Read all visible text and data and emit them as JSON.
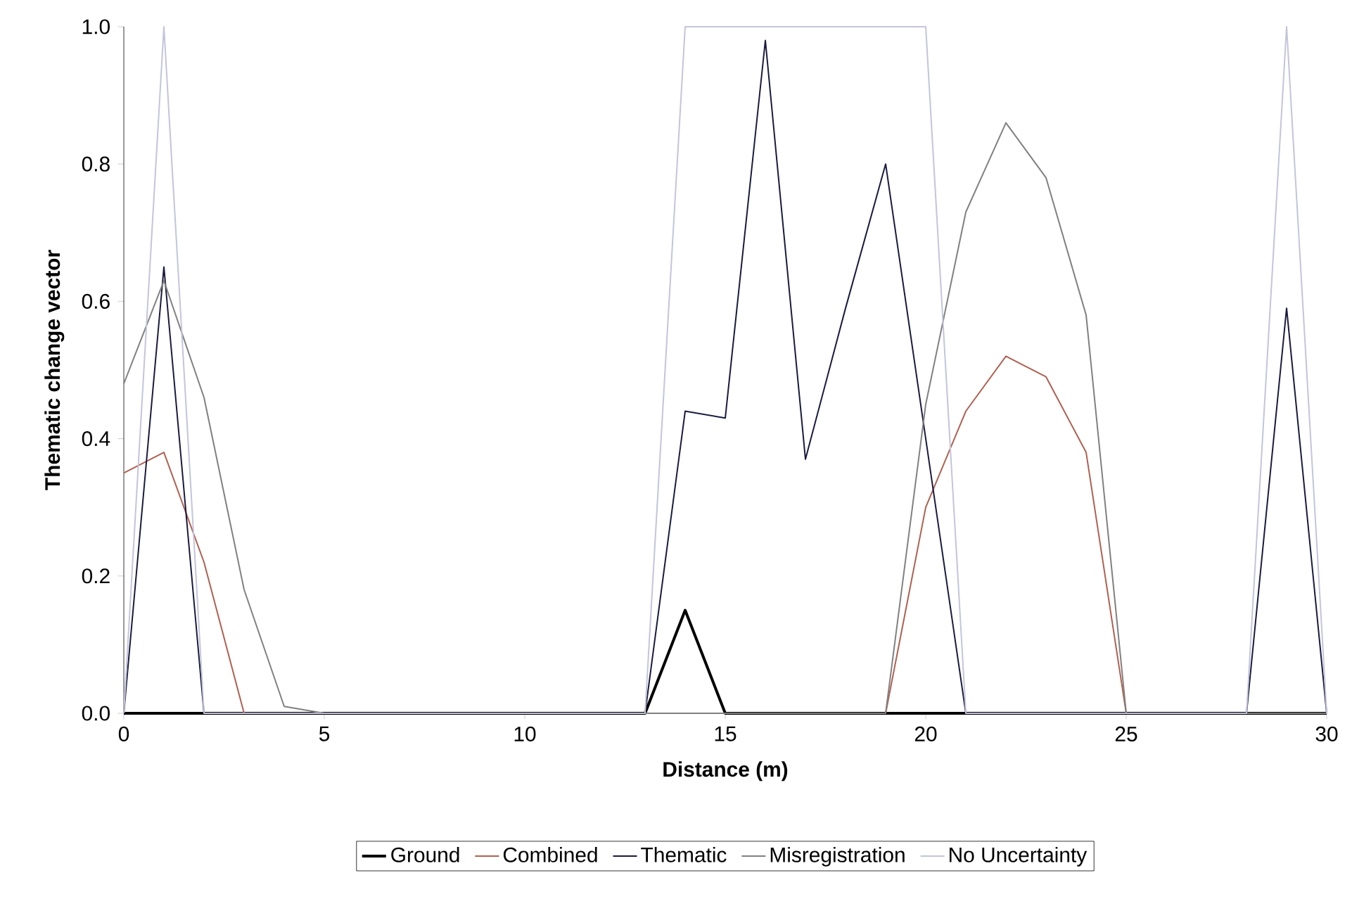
{
  "chart_data": {
    "type": "line",
    "xlabel": "Distance (m)",
    "ylabel": "Thematic change vector",
    "x": [
      0,
      1,
      2,
      3,
      4,
      5,
      6,
      7,
      8,
      9,
      10,
      11,
      12,
      13,
      14,
      15,
      16,
      17,
      18,
      19,
      20,
      21,
      22,
      23,
      24,
      25,
      26,
      27,
      28,
      29,
      30
    ],
    "xlim": [
      0,
      30
    ],
    "xticks": [
      0,
      5,
      10,
      15,
      20,
      25,
      30
    ],
    "ylim": [
      0,
      1
    ],
    "yticks": [
      {
        "value": 0,
        "label": "0.0"
      },
      {
        "value": 0.2,
        "label": "0.2"
      },
      {
        "value": 0.4,
        "label": "0.4"
      },
      {
        "value": 0.6,
        "label": "0.6"
      },
      {
        "value": 0.8,
        "label": "0.8"
      },
      {
        "value": 1,
        "label": "1.0"
      }
    ],
    "grid": false,
    "legend": "bottom",
    "series": [
      {
        "name": "Ground",
        "color": "#000000",
        "values": [
          0,
          0,
          0,
          0,
          0,
          0,
          0,
          0,
          0,
          0,
          0,
          0,
          0,
          0,
          0.15,
          0,
          0,
          0,
          0,
          0,
          0,
          0,
          0,
          0,
          0,
          0,
          0,
          0,
          0,
          0,
          0
        ]
      },
      {
        "name": "Combined",
        "color": "#b06050",
        "values": [
          0.35,
          0.38,
          0.22,
          0,
          null,
          null,
          null,
          null,
          null,
          null,
          null,
          null,
          null,
          null,
          null,
          null,
          null,
          null,
          null,
          0,
          0.3,
          0.44,
          0.52,
          0.49,
          0.38,
          0,
          null,
          null,
          null,
          null,
          null
        ]
      },
      {
        "name": "Thematic",
        "color": "#1a1a40",
        "values": [
          0,
          0.65,
          0,
          0,
          0,
          0,
          0,
          0,
          0,
          0,
          0,
          0,
          0,
          0,
          0.44,
          0.43,
          0.98,
          0.37,
          0.59,
          0.8,
          0.4,
          0,
          0,
          0,
          0,
          0,
          0,
          0,
          0,
          0.59,
          0
        ]
      },
      {
        "name": "Misregistration",
        "color": "#808080",
        "values": [
          0.48,
          0.63,
          0.46,
          0.18,
          0.01,
          0,
          0,
          0,
          0,
          0,
          0,
          0,
          0,
          0,
          0,
          0,
          0,
          0,
          0,
          0,
          0.45,
          0.73,
          0.86,
          0.78,
          0.58,
          0,
          0,
          0,
          0,
          0,
          0
        ]
      },
      {
        "name": "No Uncertainty",
        "color": "#c4c4dc",
        "values": [
          0,
          1,
          0,
          0,
          0,
          0,
          0,
          0,
          0,
          0,
          0,
          0,
          0,
          0,
          1,
          1,
          1,
          1,
          1,
          1,
          1,
          0,
          0,
          0,
          0,
          0,
          0,
          0,
          0,
          1,
          0
        ]
      }
    ]
  }
}
